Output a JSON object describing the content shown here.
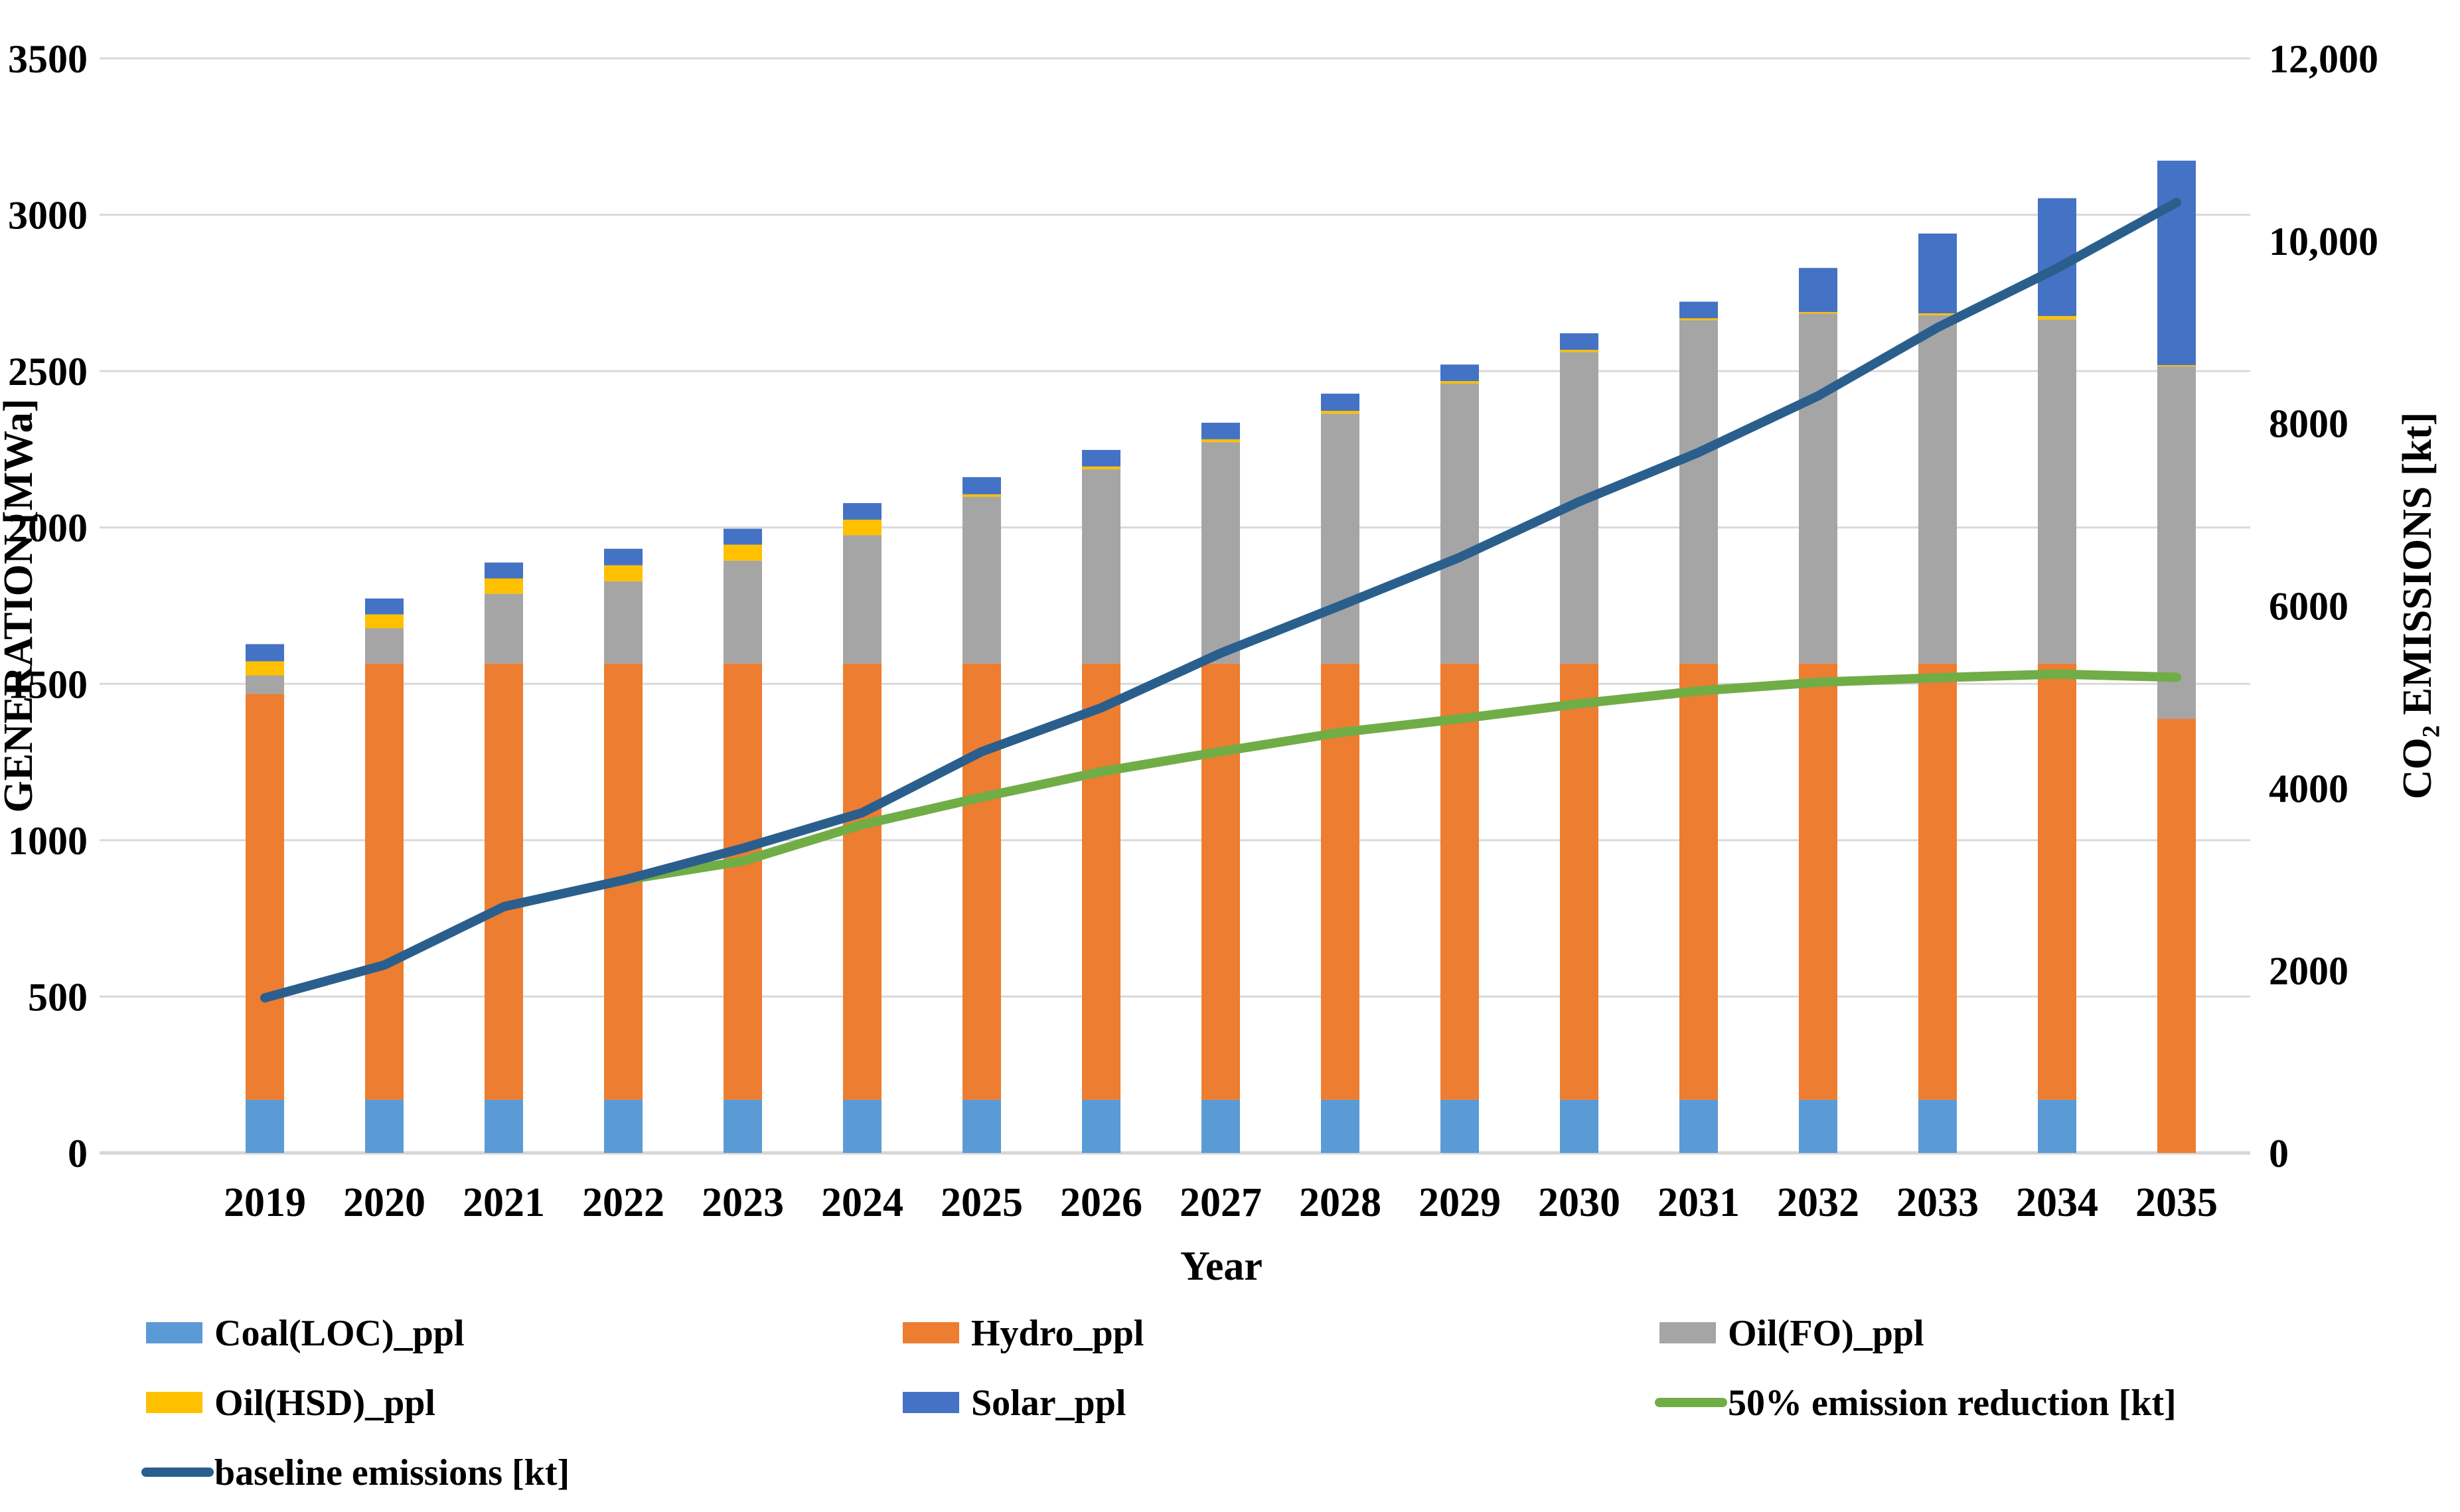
{
  "chart_data": {
    "type": "combo-stacked-bar-line",
    "title": "",
    "x_label": "Year",
    "categories": [
      "2019",
      "2020",
      "2021",
      "2022",
      "2023",
      "2024",
      "2025",
      "2026",
      "2027",
      "2028",
      "2029",
      "2030",
      "2031",
      "2032",
      "2033",
      "2034",
      "2035"
    ],
    "y_left": {
      "label": "GENERATION [MWa]",
      "min": 0,
      "max": 3500,
      "tick_step": 500,
      "tick_labels": [
        "0",
        "500",
        "1000",
        "1500",
        "2000",
        "2500",
        "3000",
        "3500"
      ],
      "grid": true
    },
    "y_right": {
      "label": "CO₂ EMISSIONS [kt]",
      "min": 0,
      "max": 12000,
      "tick_step": 2000,
      "tick_labels": [
        "0",
        "2000",
        "4000",
        "6000",
        "8000",
        "10,000",
        "12,000"
      ]
    },
    "bar_series": [
      {
        "name": "Coal(LOC)_ppl",
        "color": "#5B9BD5",
        "values": [
          170,
          170,
          170,
          170,
          170,
          170,
          170,
          170,
          170,
          170,
          170,
          170,
          170,
          170,
          170,
          170,
          0
        ]
      },
      {
        "name": "Hydro_ppl",
        "color": "#ED7D31",
        "values": [
          1298,
          1395,
          1395,
          1395,
          1395,
          1395,
          1395,
          1395,
          1395,
          1395,
          1395,
          1395,
          1395,
          1395,
          1395,
          1395,
          1388
        ]
      },
      {
        "name": "Oil(FO)_ppl",
        "color": "#A5A5A5",
        "values": [
          59,
          113,
          223,
          263,
          329,
          410,
          533,
          621,
          708,
          799,
          895,
          996,
          1098,
          1119,
          1114,
          1100,
          1127
        ]
      },
      {
        "name": "Oil(HSD)_ppl",
        "color": "#FFC000",
        "values": [
          45,
          44,
          49,
          51,
          51,
          50,
          8,
          9,
          9,
          9,
          8,
          7,
          6,
          5,
          6,
          11,
          4
        ]
      },
      {
        "name": "Solar_ppl",
        "color": "#4472C4",
        "values": [
          55,
          51,
          51,
          53,
          51,
          53,
          55,
          53,
          53,
          55,
          53,
          53,
          53,
          141,
          255,
          377,
          654
        ]
      }
    ],
    "line_series": [
      {
        "name": "50% emission reduction [kt]",
        "color": "#71AD47",
        "axis": "right",
        "start_index": 3,
        "values": [
          2990,
          3200,
          3600,
          3900,
          4180,
          4400,
          4610,
          4760,
          4925,
          5065,
          5160,
          5210,
          5250,
          5215
        ]
      },
      {
        "name": "baseline emissions [kt]",
        "color": "#2A5F8D",
        "axis": "right",
        "start_index": 0,
        "values": [
          1700,
          2060,
          2700,
          2990,
          3340,
          3730,
          4400,
          4880,
          5480,
          6000,
          6530,
          7140,
          7680,
          8300,
          9050,
          9700,
          10420
        ]
      }
    ],
    "legend": [
      {
        "row": 0,
        "col": 0,
        "swatch": "rect",
        "color": "#5B9BD5",
        "label": "Coal(LOC)_ppl"
      },
      {
        "row": 0,
        "col": 1,
        "swatch": "rect",
        "color": "#ED7D31",
        "label": "Hydro_ppl"
      },
      {
        "row": 0,
        "col": 2,
        "swatch": "rect",
        "color": "#A5A5A5",
        "label": "Oil(FO)_ppl"
      },
      {
        "row": 1,
        "col": 0,
        "swatch": "rect",
        "color": "#FFC000",
        "label": "Oil(HSD)_ppl"
      },
      {
        "row": 1,
        "col": 1,
        "swatch": "rect",
        "color": "#4472C4",
        "label": "Solar_ppl"
      },
      {
        "row": 1,
        "col": 2,
        "swatch": "line",
        "color": "#71AD47",
        "label": "50% emission reduction [kt]"
      },
      {
        "row": 2,
        "col": 0,
        "swatch": "line",
        "color": "#2A5F8D",
        "label": "baseline emissions [kt]"
      }
    ],
    "grid_color": "#D9D9D9",
    "axis_line_color": "#D6D6D6",
    "background": "#FFFFFF"
  }
}
